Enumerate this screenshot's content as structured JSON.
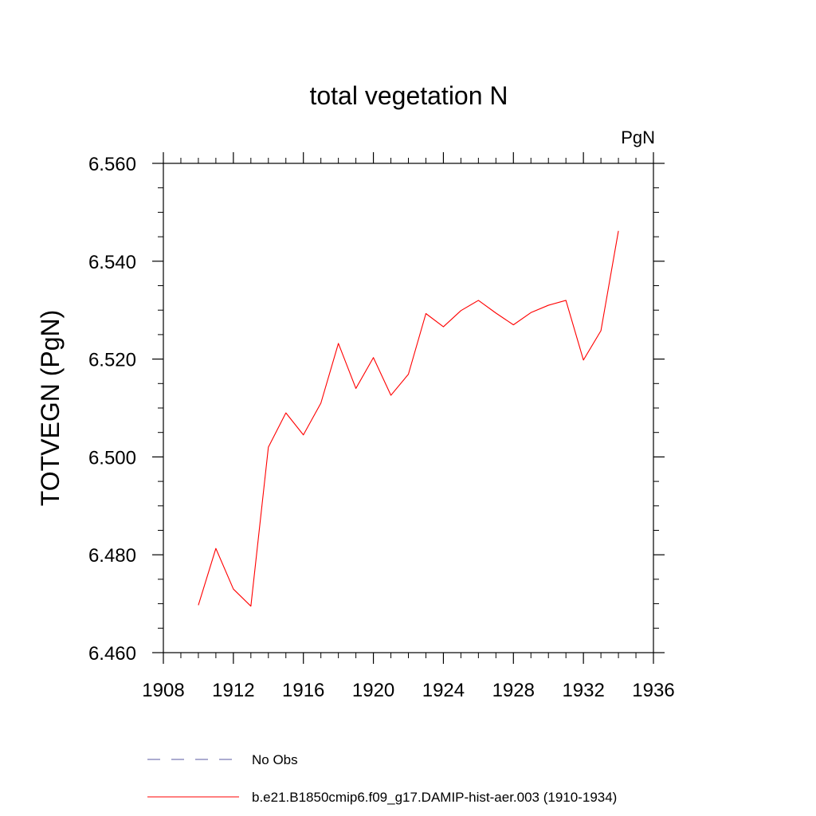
{
  "chart_data": {
    "type": "line",
    "title": "total vegetation N",
    "units_label": "PgN",
    "ylabel": "TOTVEGN  (PgN)",
    "xlabel": "",
    "xlim": [
      1908,
      1936
    ],
    "ylim": [
      6.46,
      6.56
    ],
    "x_ticks": [
      "1908",
      "1912",
      "1916",
      "1920",
      "1924",
      "1928",
      "1932",
      "1936"
    ],
    "y_ticks": [
      "6.460",
      "6.480",
      "6.500",
      "6.520",
      "6.540",
      "6.560"
    ],
    "series": [
      {
        "name": "b.e21.B1850cmip6.f09_g17.DAMIP-hist-aer.003 (1910-1934)",
        "color": "#ff0000",
        "x": [
          1910,
          1911,
          1912,
          1913,
          1914,
          1915,
          1916,
          1917,
          1918,
          1919,
          1920,
          1921,
          1922,
          1923,
          1924,
          1925,
          1926,
          1927,
          1928,
          1929,
          1930,
          1931,
          1932,
          1933,
          1934
        ],
        "y": [
          6.4697,
          6.4813,
          6.473,
          6.4695,
          6.502,
          6.509,
          6.5045,
          6.511,
          6.5232,
          6.514,
          6.5203,
          6.5126,
          6.5169,
          6.5293,
          6.5266,
          6.5299,
          6.532,
          6.5294,
          6.527,
          6.5295,
          6.531,
          6.532,
          6.5198,
          6.5258,
          6.5462
        ]
      }
    ],
    "legend": [
      {
        "label": "No Obs",
        "color": "#5a5aa0",
        "style": "dashed"
      },
      {
        "label": "b.e21.B1850cmip6.f09_g17.DAMIP-hist-aer.003 (1910-1934)",
        "color": "#ff0000",
        "style": "solid"
      }
    ],
    "grid": false,
    "legend_position": "bottom"
  }
}
